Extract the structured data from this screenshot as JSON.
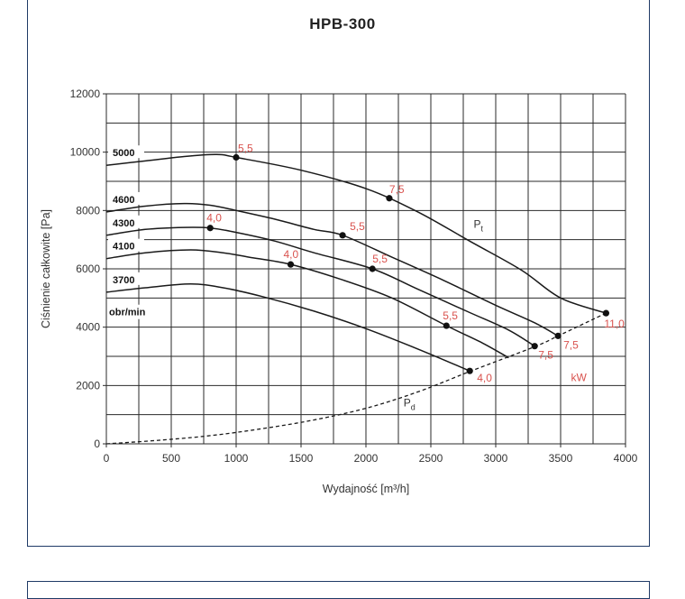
{
  "title": "HPB-300",
  "chart_data": {
    "type": "line",
    "title": "HPB-300",
    "xlabel": "Wydajność [m³/h]",
    "ylabel": "Ciśnienie całkowite [Pa]",
    "xlim": [
      0,
      4000
    ],
    "ylim": [
      0,
      12000
    ],
    "xticks": [
      "0",
      "500",
      "1000",
      "1500",
      "2000",
      "2500",
      "3000",
      "3500",
      "4000"
    ],
    "yticks": [
      "0",
      "2000",
      "4000",
      "6000",
      "8000",
      "10000",
      "12000"
    ],
    "grid": true,
    "rpm_unit": "obr/min",
    "kw_unit": "kW",
    "series": [
      {
        "name": "5000",
        "points": [
          [
            0,
            9550
          ],
          [
            300,
            9700
          ],
          [
            600,
            9850
          ],
          [
            850,
            9920
          ],
          [
            1000,
            9820
          ],
          [
            1500,
            9380
          ],
          [
            2000,
            8750
          ],
          [
            2400,
            7950
          ],
          [
            2800,
            6950
          ],
          [
            3200,
            5950
          ],
          [
            3500,
            5000
          ],
          [
            3850,
            4480
          ]
        ]
      },
      {
        "name": "4600",
        "points": [
          [
            0,
            7950
          ],
          [
            300,
            8150
          ],
          [
            600,
            8240
          ],
          [
            800,
            8180
          ],
          [
            1000,
            8000
          ],
          [
            1300,
            7700
          ],
          [
            1600,
            7350
          ],
          [
            1820,
            7150
          ],
          [
            2200,
            6400
          ],
          [
            2600,
            5600
          ],
          [
            3000,
            4750
          ],
          [
            3300,
            4150
          ],
          [
            3480,
            3700
          ]
        ]
      },
      {
        "name": "4300",
        "points": [
          [
            0,
            7150
          ],
          [
            300,
            7350
          ],
          [
            600,
            7420
          ],
          [
            800,
            7400
          ],
          [
            1000,
            7250
          ],
          [
            1300,
            6950
          ],
          [
            1600,
            6550
          ],
          [
            2050,
            6000
          ],
          [
            2400,
            5300
          ],
          [
            2800,
            4500
          ],
          [
            3100,
            3900
          ],
          [
            3300,
            3350
          ]
        ]
      },
      {
        "name": "4100",
        "points": [
          [
            0,
            6350
          ],
          [
            300,
            6550
          ],
          [
            650,
            6650
          ],
          [
            900,
            6550
          ],
          [
            1100,
            6400
          ],
          [
            1420,
            6150
          ],
          [
            1800,
            5650
          ],
          [
            2200,
            5000
          ],
          [
            2620,
            4050
          ],
          [
            2900,
            3450
          ],
          [
            3100,
            2950
          ]
        ]
      },
      {
        "name": "3700",
        "points": [
          [
            0,
            5200
          ],
          [
            300,
            5350
          ],
          [
            650,
            5480
          ],
          [
            900,
            5350
          ],
          [
            1200,
            5050
          ],
          [
            1600,
            4550
          ],
          [
            2000,
            3950
          ],
          [
            2400,
            3250
          ],
          [
            2800,
            2500
          ]
        ]
      }
    ],
    "pt_curve": {
      "name": "Pt",
      "label_main": "P",
      "label_sub": "t"
    },
    "pd_curve": {
      "name": "Pd",
      "label_main": "P",
      "label_sub": "d",
      "points": [
        [
          0,
          0
        ],
        [
          400,
          120
        ],
        [
          800,
          280
        ],
        [
          1200,
          520
        ],
        [
          1600,
          820
        ],
        [
          2000,
          1220
        ],
        [
          2400,
          1780
        ],
        [
          2800,
          2480
        ],
        [
          3300,
          3330
        ],
        [
          3480,
          3700
        ],
        [
          3850,
          4480
        ]
      ]
    },
    "kw_points": [
      {
        "x": 1000,
        "y": 9820,
        "label": "5,5"
      },
      {
        "x": 2180,
        "y": 8420,
        "label": "7,5"
      },
      {
        "x": 3850,
        "y": 4480,
        "label": "11,0"
      },
      {
        "x": 1820,
        "y": 7150,
        "label": "5,5"
      },
      {
        "x": 3480,
        "y": 3700,
        "label": "7,5"
      },
      {
        "x": 800,
        "y": 7400,
        "label": "4,0"
      },
      {
        "x": 2050,
        "y": 6000,
        "label": "5,5"
      },
      {
        "x": 3300,
        "y": 3350,
        "label": "7,5"
      },
      {
        "x": 1420,
        "y": 6150,
        "label": "4,0"
      },
      {
        "x": 2620,
        "y": 4050,
        "label": "5,5"
      },
      {
        "x": 2800,
        "y": 2500,
        "label": "4,0"
      }
    ]
  }
}
